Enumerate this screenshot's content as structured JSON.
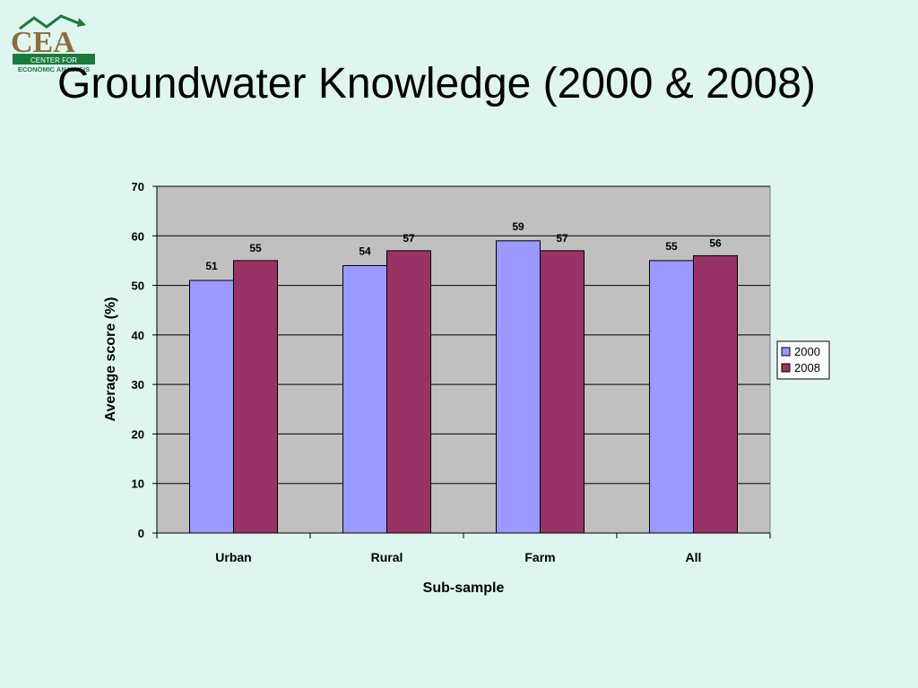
{
  "slide": {
    "title": "Groundwater Knowledge (2000 & 2008)"
  },
  "logo": {
    "letters": "CEA",
    "subtitle_line1": "CENTER FOR",
    "subtitle_line2": "ECONOMIC ANALYSIS",
    "colors": {
      "letters": "#8c6d3c",
      "band": "#1a7a3c",
      "arrow": "#1a7a3c"
    }
  },
  "chart_data": {
    "type": "bar",
    "categories": [
      "Urban",
      "Rural",
      "Farm",
      "All"
    ],
    "series": [
      {
        "name": "2000",
        "values": [
          51,
          54,
          59,
          55
        ],
        "color": "#9999ff"
      },
      {
        "name": "2008",
        "values": [
          55,
          57,
          57,
          56
        ],
        "color": "#993366"
      }
    ],
    "xlabel": "Sub-sample",
    "ylabel": "Average score (%)",
    "ylim": [
      0,
      70
    ],
    "yticks": [
      0,
      10,
      20,
      30,
      40,
      50,
      60,
      70
    ],
    "grid": true,
    "legend_position": "right",
    "plot_background": "#c0c0c0"
  }
}
